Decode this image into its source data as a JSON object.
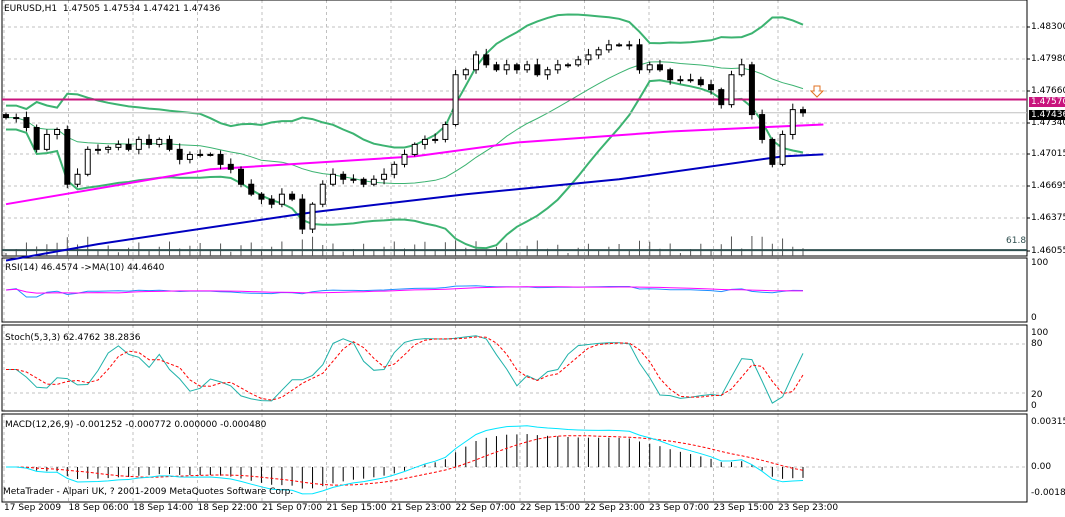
{
  "header": {
    "symbol": "EURUSD,H1",
    "open": "1.47505",
    "high": "1.47534",
    "low": "1.47421",
    "close": "1.47436"
  },
  "rsi_label": "RSI(14) 46.4574  ->MA(10) 44.4640",
  "stoch_label": "Stoch(5,3,3) 62.4762 38.2836",
  "macd_label": "MACD(12,26,9) -0.001252 -0.000772 0.000000 -0.000480",
  "copyright": "MetaTrader - Alpari UK, ? 2001-2009 MetaQuotes Software Corp.",
  "fibo_label": "61.8",
  "price_axis": [
    "1.48300",
    "1.47980",
    "1.47660",
    "1.47340",
    "1.47015",
    "1.46695",
    "1.46375",
    "1.46055"
  ],
  "price_tag_line": "1.47570",
  "price_tag_bid": "1.47436",
  "rsi_axis": [
    "100",
    "0"
  ],
  "stoch_axis": [
    "100",
    "80",
    "20",
    "0"
  ],
  "macd_axis": [
    "0.00315",
    "0.00",
    "-0.00187"
  ],
  "time_axis": [
    "17 Sep 2009",
    "18 Sep 06:00",
    "18 Sep 14:00",
    "18 Sep 22:00",
    "21 Sep 07:00",
    "21 Sep 15:00",
    "21 Sep 23:00",
    "22 Sep 07:00",
    "22 Sep 15:00",
    "22 Sep 23:00",
    "23 Sep 07:00",
    "23 Sep 15:00",
    "23 Sep 23:00"
  ],
  "colors": {
    "bands": "#3cb371",
    "ma_fast": "#ff00ff",
    "ma_slow": "#0000c0",
    "hline": "#c8147d",
    "rsi": "#1e90ff",
    "stoch_main": "#20b2aa",
    "stoch_signal": "#ff0000",
    "macd_line": "#00e5ff",
    "arrow": "#e07020"
  },
  "chart_data": {
    "type": "candlestick",
    "title": "EURUSD,H1",
    "ylim": [
      1.45995,
      1.48571
    ],
    "closes": [
      1.47388,
      1.47388,
      1.47288,
      1.47068,
      1.47218,
      1.47268,
      1.46717,
      1.46817,
      1.47068,
      1.47068,
      1.47088,
      1.47118,
      1.47068,
      1.47168,
      1.47118,
      1.47168,
      1.47068,
      1.46967,
      1.47017,
      1.47017,
      1.47017,
      1.46917,
      1.46867,
      1.46717,
      1.46617,
      1.46567,
      1.46516,
      1.46617,
      1.46567,
      1.46266,
      1.46516,
      1.46717,
      1.46817,
      1.46767,
      1.46767,
      1.46717,
      1.46767,
      1.46817,
      1.46917,
      1.47017,
      1.47118,
      1.47168,
      1.47168,
      1.47318,
      1.47819,
      1.47869,
      1.48019,
      1.47919,
      1.47869,
      1.47919,
      1.47869,
      1.47919,
      1.47819,
      1.47869,
      1.47919,
      1.47919,
      1.47969,
      1.48019,
      1.4807,
      1.4812,
      1.4812,
      1.4812,
      1.47869,
      1.47919,
      1.47869,
      1.47769,
      1.47769,
      1.47769,
      1.47719,
      1.47669,
      1.47518,
      1.47819,
      1.47919,
      1.47418,
      1.47168,
      1.46917,
      1.47218,
      1.47468,
      1.47436
    ],
    "ma_slow": [
      [
        0,
        1.4595
      ],
      [
        9,
        1.46115
      ],
      [
        30,
        1.46436
      ],
      [
        45,
        1.46617
      ],
      [
        60,
        1.46767
      ],
      [
        76,
        1.46997
      ],
      [
        80,
        1.47017
      ]
    ],
    "ma_fast": [
      [
        0,
        1.46516
      ],
      [
        20,
        1.46867
      ],
      [
        40,
        1.46997
      ],
      [
        50,
        1.47137
      ],
      [
        65,
        1.47248
      ],
      [
        80,
        1.47318
      ]
    ],
    "hline": 1.4757,
    "bid": 1.47436,
    "fibo_level": 1.46115,
    "rsi_range": [
      0,
      100
    ],
    "stoch_range": [
      0,
      100
    ],
    "macd_range": [
      -0.00187,
      0.00315
    ]
  }
}
